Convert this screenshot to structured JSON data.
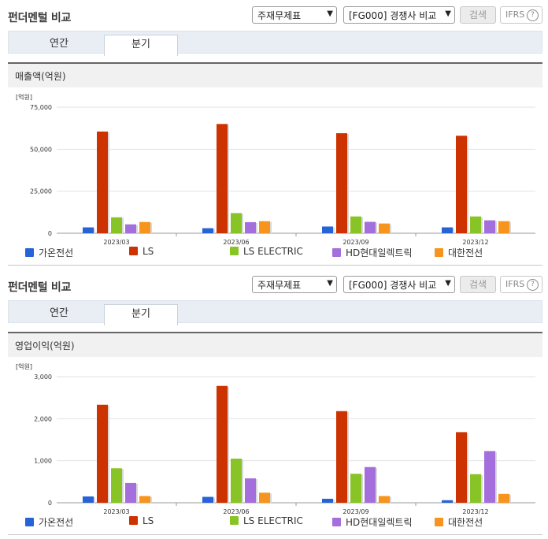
{
  "legend": [
    {
      "name": "가온전선",
      "color": "#2563d6"
    },
    {
      "name": "LS",
      "color": "#cc3300"
    },
    {
      "name": "LS ELECTRIC",
      "color": "#88c425"
    },
    {
      "name": "HD현대일렉트릭",
      "color": "#a46fdd"
    },
    {
      "name": "대한전선",
      "color": "#f7941d"
    }
  ],
  "panels": [
    {
      "title": "펀더멘털 비교",
      "select_report": "주재무제표",
      "select_compare": "[FG000] 경쟁사 비교",
      "search_label": "검색",
      "ifrs_label": "IFRS",
      "ifrs_help": "?",
      "tabs": [
        "연간",
        "분기"
      ],
      "active_tab": "분기",
      "subtitle": "매출액(억원)"
    },
    {
      "title": "펀더멘털 비교",
      "select_report": "주재무제표",
      "select_compare": "[FG000] 경쟁사 비교",
      "search_label": "검색",
      "ifrs_label": "IFRS",
      "ifrs_help": "?",
      "tabs": [
        "연간",
        "분기"
      ],
      "active_tab": "분기",
      "subtitle": "영업이익(억원)"
    }
  ],
  "chart_data": [
    {
      "type": "bar",
      "unit_label": "[억원]",
      "categories": [
        "2023/03",
        "2023/06",
        "2023/09",
        "2023/12"
      ],
      "ylim": [
        0,
        75000
      ],
      "yticks": [
        "0",
        "25,000",
        "50,000",
        "75,000"
      ],
      "ytick_values": [
        0,
        25000,
        50000,
        75000
      ],
      "series": [
        {
          "name": "가온전선",
          "values": [
            3500,
            3000,
            4000,
            3500
          ]
        },
        {
          "name": "LS",
          "values": [
            60500,
            65000,
            59500,
            58000
          ]
        },
        {
          "name": "LS ELECTRIC",
          "values": [
            9500,
            12000,
            10000,
            10000
          ]
        },
        {
          "name": "HD현대일렉트릭",
          "values": [
            5300,
            6600,
            6800,
            7700
          ]
        },
        {
          "name": "대한전선",
          "values": [
            6700,
            7200,
            5800,
            7200
          ]
        }
      ]
    },
    {
      "type": "bar",
      "unit_label": "[억원]",
      "categories": [
        "2023/03",
        "2023/06",
        "2023/09",
        "2023/12"
      ],
      "ylim": [
        0,
        3000
      ],
      "yticks": [
        "0",
        "1,000",
        "2,000",
        "3,000"
      ],
      "ytick_values": [
        0,
        1000,
        2000,
        3000
      ],
      "series": [
        {
          "name": "가온전선",
          "values": [
            150,
            140,
            95,
            60
          ]
        },
        {
          "name": "LS",
          "values": [
            2330,
            2780,
            2180,
            1680
          ]
        },
        {
          "name": "LS ELECTRIC",
          "values": [
            820,
            1050,
            690,
            680
          ]
        },
        {
          "name": "HD현대일렉트릭",
          "values": [
            470,
            580,
            850,
            1230
          ]
        },
        {
          "name": "대한전선",
          "values": [
            160,
            240,
            160,
            210
          ]
        }
      ]
    }
  ]
}
